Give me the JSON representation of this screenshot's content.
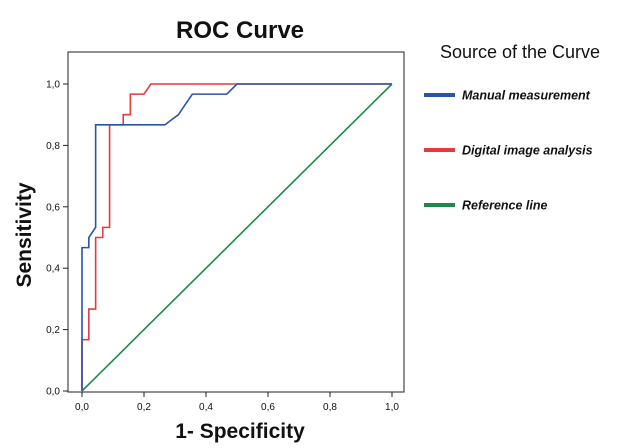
{
  "chart_data": {
    "type": "line",
    "title": "ROC Curve",
    "xlabel": "1- Specificity",
    "ylabel": "Sensitivity",
    "xlim": [
      0,
      1
    ],
    "ylim": [
      0,
      1
    ],
    "x_ticks": [
      "0,0",
      "0,2",
      "0,4",
      "0,6",
      "0,8",
      "1,0"
    ],
    "y_ticks": [
      "0,0",
      "0,2",
      "0,4",
      "0,6",
      "0,8",
      "1,0"
    ],
    "legend_title": "Source of the Curve",
    "legend_position": "right",
    "grid": false,
    "series": [
      {
        "name": "Manual measurement",
        "color": "#2b54a8",
        "points": [
          [
            0,
            0
          ],
          [
            0,
            0.467
          ],
          [
            0.022,
            0.467
          ],
          [
            0.022,
            0.5
          ],
          [
            0.044,
            0.533
          ],
          [
            0.044,
            0.867
          ],
          [
            0.089,
            0.867
          ],
          [
            0.267,
            0.867
          ],
          [
            0.311,
            0.9
          ],
          [
            0.333,
            0.933
          ],
          [
            0.356,
            0.967
          ],
          [
            0.467,
            0.967
          ],
          [
            0.5,
            1.0
          ],
          [
            1.0,
            1.0
          ]
        ]
      },
      {
        "name": "Digital image analysis",
        "color": "#e23b3b",
        "points": [
          [
            0,
            0
          ],
          [
            0,
            0.167
          ],
          [
            0.022,
            0.167
          ],
          [
            0.022,
            0.267
          ],
          [
            0.044,
            0.267
          ],
          [
            0.044,
            0.5
          ],
          [
            0.067,
            0.5
          ],
          [
            0.067,
            0.533
          ],
          [
            0.089,
            0.533
          ],
          [
            0.089,
            0.867
          ],
          [
            0.133,
            0.867
          ],
          [
            0.133,
            0.9
          ],
          [
            0.156,
            0.9
          ],
          [
            0.156,
            0.967
          ],
          [
            0.2,
            0.967
          ],
          [
            0.2,
            0.967
          ],
          [
            0.222,
            1.0
          ],
          [
            1.0,
            1.0
          ]
        ]
      },
      {
        "name": "Reference line",
        "color": "#1b8a4a",
        "points": [
          [
            0,
            0
          ],
          [
            1,
            1
          ]
        ]
      }
    ]
  }
}
